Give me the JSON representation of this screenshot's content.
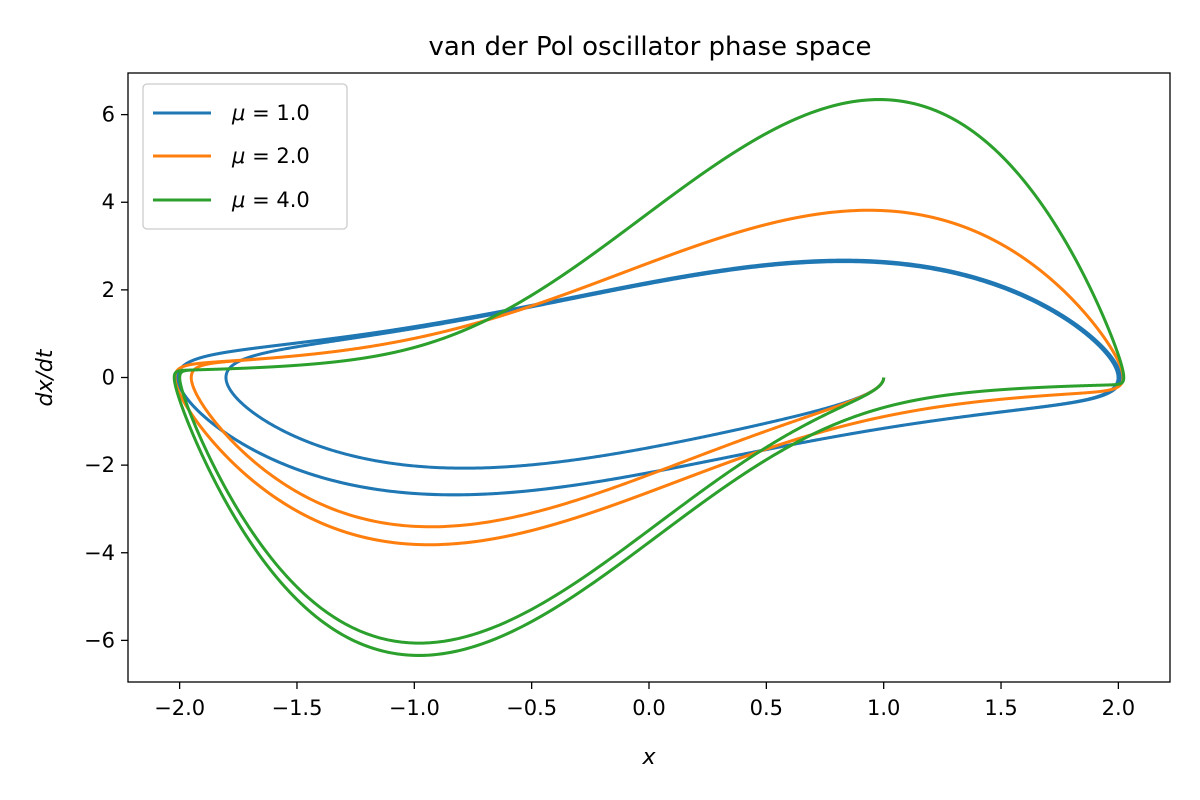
{
  "chart_data": {
    "type": "line",
    "title": "van der Pol oscillator phase space",
    "xlabel": "x",
    "ylabel": "dx/dt",
    "xlim": [
      -2.22,
      2.22
    ],
    "ylim": [
      -6.95,
      6.95
    ],
    "xticks": [
      -2.0,
      -1.5,
      -1.0,
      -0.5,
      0.0,
      0.5,
      1.0,
      1.5,
      2.0
    ],
    "xtick_labels": [
      "−2.0",
      "−1.5",
      "−1.0",
      "−0.5",
      "0.0",
      "0.5",
      "1.0",
      "1.5",
      "2.0"
    ],
    "yticks": [
      -6,
      -4,
      -2,
      0,
      2,
      4,
      6
    ],
    "ytick_labels": [
      "−6",
      "−4",
      "−2",
      "0",
      "2",
      "4",
      "6"
    ],
    "grid": false,
    "legend_position": "upper-left",
    "initial_condition": {
      "x": 1.0,
      "dxdt": 0.0
    },
    "t_max": 40,
    "series": [
      {
        "name": "μ = 1.0",
        "mu_symbol": "μ",
        "mu_value": "= 1.0",
        "mu": 1.0,
        "color": "#1f77b4"
      },
      {
        "name": "μ = 2.0",
        "mu_symbol": "μ",
        "mu_value": "= 2.0",
        "mu": 2.0,
        "color": "#ff7f0e"
      },
      {
        "name": "μ = 4.0",
        "mu_symbol": "μ",
        "mu_value": "= 4.0",
        "mu": 4.0,
        "color": "#2ca02c"
      }
    ]
  }
}
